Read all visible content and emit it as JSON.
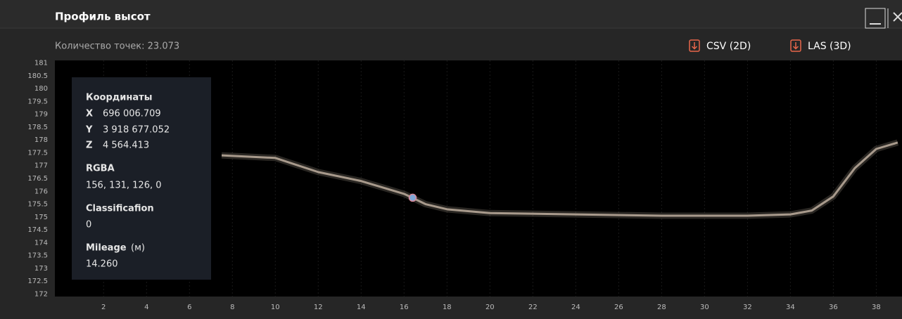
{
  "header": {
    "title": "Профиль высот",
    "points_count": "Количество точек: 23.073"
  },
  "buttons": [
    "CSV (2D)",
    "LAS (3D)"
  ],
  "info_panel": {
    "coords_title": "Координаты",
    "x_label": "X",
    "x_value": "696 006.709",
    "y_label": "Y",
    "y_value": "3 918 677.052",
    "z_label": "Z",
    "z_value": "4 564.413",
    "rgba_title": "RGBA",
    "rgba_value": "156, 131, 126, 0",
    "class_title": "Classificafion",
    "class_value": "0",
    "mileage_title": "Mileage",
    "mileage_unit": "(м)",
    "mileage_value": "14.260"
  },
  "chart_data": {
    "type": "line",
    "x": [
      7.5,
      10,
      12,
      14,
      16,
      17,
      18,
      20,
      24,
      28,
      32,
      34,
      35,
      36,
      37,
      38,
      39
    ],
    "values": [
      177.4,
      177.3,
      176.75,
      176.4,
      175.9,
      175.5,
      175.3,
      175.15,
      175.1,
      175.05,
      175.05,
      175.1,
      175.25,
      175.8,
      176.9,
      177.65,
      177.9
    ],
    "color": "#a89a8c",
    "selected_point": {
      "x": 16.4,
      "y": 175.75
    },
    "xlim": [
      -0.27,
      39.2
    ],
    "ylim": [
      171.9,
      181.1
    ],
    "xticks": [
      2,
      4,
      6,
      8,
      10,
      12,
      14,
      16,
      18,
      20,
      22,
      24,
      26,
      28,
      30,
      32,
      34,
      36,
      38
    ],
    "yticks": [
      172,
      172.5,
      173,
      173.5,
      174,
      174.5,
      175,
      175.5,
      176,
      176.5,
      177,
      177.5,
      178,
      178.5,
      179,
      179.5,
      180,
      180.5,
      181
    ],
    "grid": true
  }
}
